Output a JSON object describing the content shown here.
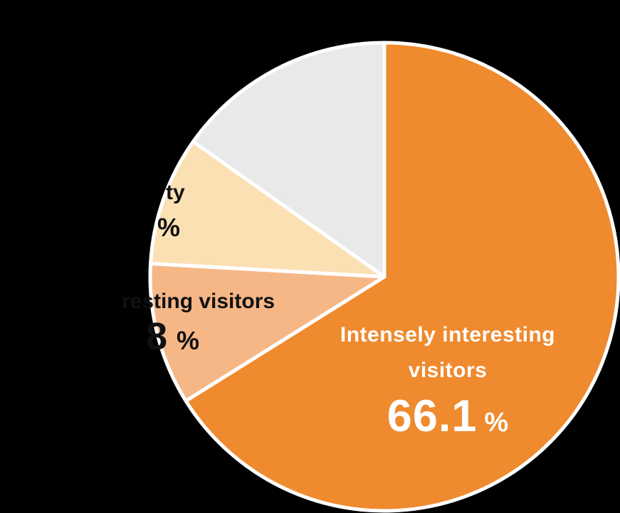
{
  "background_color": "#000000",
  "chart_data": {
    "type": "pie",
    "title": "",
    "direction": "clockwise",
    "start_angle_deg": 0,
    "legend": "none",
    "slices": [
      {
        "id": "intensely-interesting-visitors",
        "label": "Intensely interesting visitors",
        "label_lines": [
          "Intensely interesting",
          "visitors"
        ],
        "value": 66.1,
        "value_text": "66.1",
        "unit": "%",
        "color": "#EF8A2E",
        "text_color": "#FFFFFF"
      },
      {
        "id": "interesting-visitors-cropped",
        "label": "resting visitors",
        "value": 9.8,
        "value_text": "8",
        "unit": "%",
        "color": "#F6B787",
        "text_color": "#111111"
      },
      {
        "id": "ty-cropped",
        "label": "ty",
        "value": 8.9,
        "value_text": "",
        "unit": "%",
        "color": "#FBE0B4",
        "text_color": "#111111"
      },
      {
        "id": "unlabeled-gray",
        "label": "",
        "value": 15.2,
        "value_text": "",
        "unit": "",
        "color": "#EAE9E9",
        "text_color": ""
      }
    ],
    "stroke_color": "#FFFFFF"
  }
}
